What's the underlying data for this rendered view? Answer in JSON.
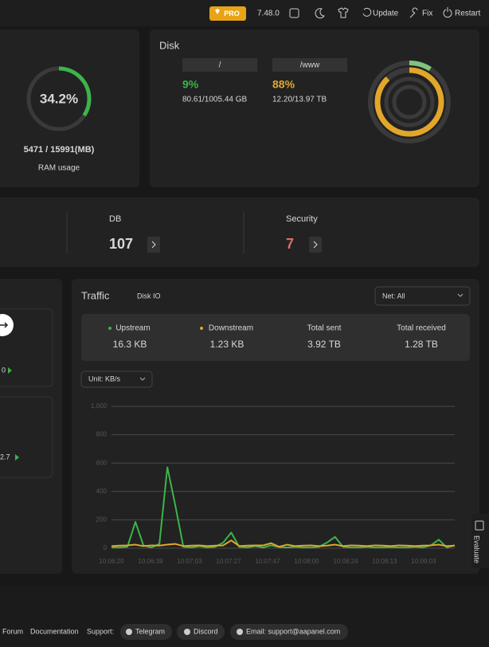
{
  "topbar": {
    "pro": "PRO",
    "version": "7.48.0",
    "update": "Update",
    "fix": "Fix",
    "restart": "Restart"
  },
  "ram": {
    "value": 34.2,
    "label": "34.2%",
    "usage": "5471 / 15991(MB)",
    "caption": "RAM usage"
  },
  "disk": {
    "title": "Disk",
    "items": [
      {
        "path": "/",
        "value": 9,
        "label": "9%",
        "size": "80.61/1005.44 GB"
      },
      {
        "path": "/www",
        "value": 88,
        "label": "88%",
        "size": "12.20/13.97 TB"
      }
    ]
  },
  "stats": [
    {
      "label": "DB",
      "value": "107"
    },
    {
      "label": "Security",
      "value": "7"
    }
  ],
  "left_panel": {
    "values": [
      "0",
      "2.7"
    ]
  },
  "traffic": {
    "title": "Traffic",
    "tab": "Disk IO",
    "select": "Net: All",
    "unit": "Unit: KB/s",
    "summary": [
      {
        "label": "Upstream",
        "value": "16.3 KB"
      },
      {
        "label": "Downstream",
        "value": "1.23 KB"
      },
      {
        "label": "Total sent",
        "value": "3.92 TB"
      },
      {
        "label": "Total received",
        "value": "1.28 TB"
      }
    ],
    "chart": {
      "type": "line",
      "ylim": [
        0,
        1000
      ],
      "yticks": [
        0,
        200,
        400,
        600,
        800,
        {
          "value": 1000,
          "label": "1,000"
        }
      ],
      "grid": true,
      "xlabels": [
        "10:06:20",
        "10:06:39",
        "10:07:03",
        "10:07:27",
        "10:07:47",
        "10:08:00",
        "10:08:24",
        "10:08:13",
        "10:09:03"
      ],
      "series": [
        {
          "name": "Upstream",
          "color": "#3cb44b",
          "values": [
            5,
            5,
            10,
            185,
            20,
            5,
            30,
            570,
            300,
            10,
            5,
            15,
            5,
            10,
            40,
            110,
            10,
            5,
            15,
            5,
            20,
            8,
            5,
            10,
            5,
            5,
            10,
            40,
            80,
            10,
            5,
            5,
            10,
            5,
            5,
            8,
            5,
            5,
            10,
            5,
            20,
            60,
            5,
            20
          ]
        },
        {
          "name": "Downstream",
          "color": "#e2a62b",
          "values": [
            15,
            18,
            20,
            25,
            15,
            20,
            18,
            25,
            30,
            15,
            18,
            20,
            15,
            18,
            20,
            55,
            15,
            18,
            20,
            20,
            35,
            10,
            25,
            15,
            18,
            20,
            15,
            18,
            25,
            15,
            20,
            18,
            15,
            20,
            18,
            15,
            20,
            18,
            15,
            18,
            20,
            25,
            15,
            18
          ]
        }
      ]
    }
  },
  "evaluate": "Evaluate",
  "footer": {
    "forum": "Forum",
    "docs": "Documentation",
    "support": "Support:",
    "telegram": "Telegram",
    "discord": "Discord",
    "email": "Email: support@aapanel.com"
  }
}
